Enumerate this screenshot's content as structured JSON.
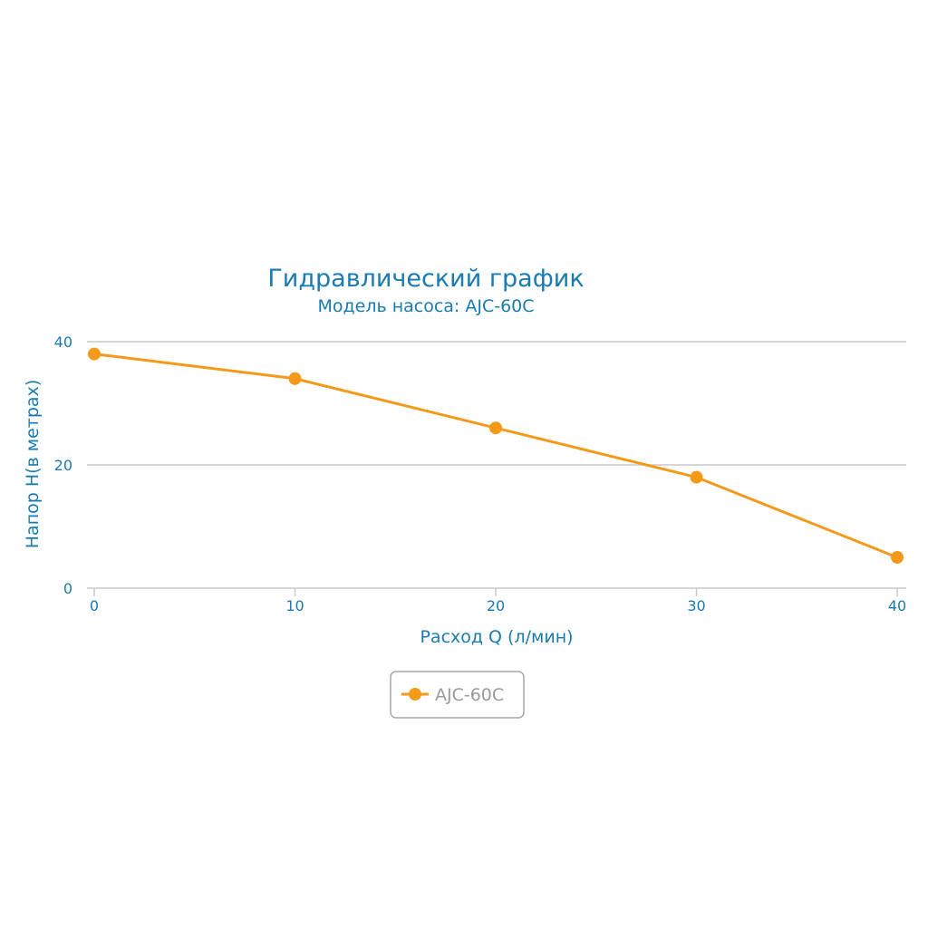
{
  "chart_data": {
    "type": "line",
    "title": "Гидравлический график",
    "subtitle": "Модель насоса: AJC-60C",
    "xlabel": "Расход Q (л/мин)",
    "ylabel": "Напор H(в метрах)",
    "x_ticks": [
      "0",
      "10",
      "20",
      "30",
      "40"
    ],
    "y_ticks": [
      "0",
      "20",
      "40"
    ],
    "xlim": [
      0,
      40
    ],
    "ylim": [
      0,
      40
    ],
    "grid": true,
    "legend": "bottom-center",
    "series": [
      {
        "name": "AJC-60C",
        "color": "#f39a1a",
        "x": [
          0,
          10,
          20,
          30,
          40
        ],
        "values": [
          38,
          34,
          26,
          18,
          5
        ]
      }
    ]
  }
}
